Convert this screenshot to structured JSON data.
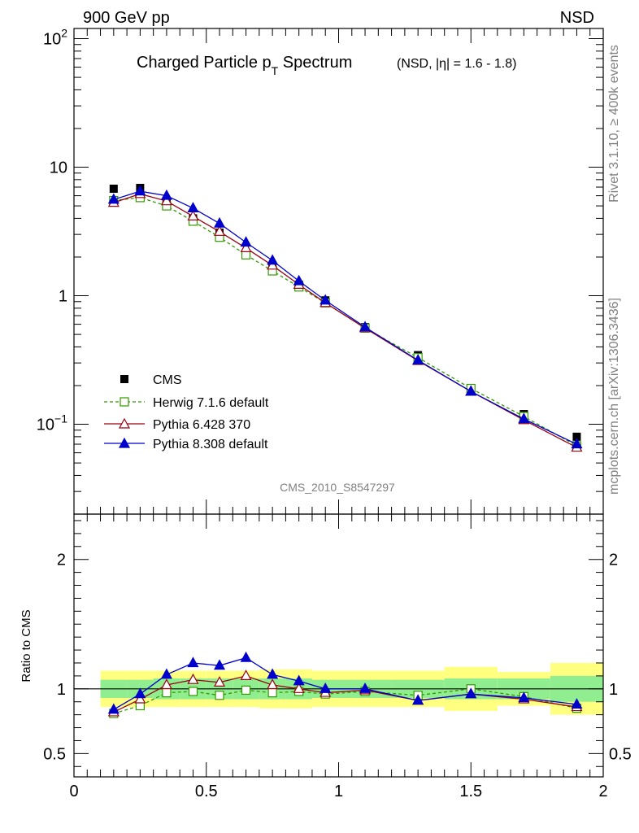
{
  "header": {
    "left": "900 GeV pp",
    "right": "NSD"
  },
  "title": {
    "main": "Charged Particle p",
    "sub": "T",
    "main2": " Spectrum",
    "suffix": "(NSD, |η| = 1.6 - 1.8)"
  },
  "side": {
    "rivet": "Rivet 3.1.10, ≥ 400k events",
    "mcplots": "mcplots.cern.ch [arXiv:1306.3436]"
  },
  "analysis_id": "CMS_2010_S8547297",
  "ratio_ylabel": "Ratio to CMS",
  "colors": {
    "herwig": "#339900",
    "pythia6": "#990011",
    "pythia8": "#0000cc",
    "band_outer": "#ffff80",
    "band_inner": "#90ee90"
  },
  "chart_data": [
    {
      "type": "scatter",
      "panel": "main",
      "yscale": "log",
      "xlim": [
        0,
        2
      ],
      "ylim": [
        0.02,
        120
      ],
      "yticks": [
        {
          "value": 0.1,
          "base": "10",
          "exp": "−1"
        },
        {
          "value": 1,
          "label": "1"
        },
        {
          "value": 10,
          "label": "10"
        },
        {
          "value": 100,
          "base": "10",
          "exp": "2"
        }
      ],
      "legend_position": "bottom-left",
      "series": [
        {
          "name": "CMS",
          "marker": "filled-square",
          "x": [
            0.15,
            0.25,
            0.35,
            0.45,
            0.55,
            0.65,
            0.75,
            0.85,
            0.95,
            1.1,
            1.3,
            1.5,
            1.7,
            1.9
          ],
          "y": [
            6.8,
            6.9,
            5.3,
            4.0,
            3.1,
            2.15,
            1.65,
            1.22,
            0.92,
            0.57,
            0.345,
            0.19,
            0.12,
            0.08
          ]
        },
        {
          "name": "Herwig 7.1.6 default",
          "marker": "open-square",
          "line": "dashed",
          "x": [
            0.15,
            0.25,
            0.35,
            0.45,
            0.55,
            0.65,
            0.75,
            0.85,
            0.95,
            1.1,
            1.3,
            1.5,
            1.7,
            1.9
          ],
          "y": [
            5.5,
            5.8,
            5.0,
            3.8,
            2.85,
            2.08,
            1.56,
            1.17,
            0.88,
            0.56,
            0.33,
            0.19,
            0.115,
            0.068
          ]
        },
        {
          "name": "Pythia 6.428 370",
          "marker": "open-triangle",
          "line": "solid",
          "x": [
            0.15,
            0.25,
            0.35,
            0.45,
            0.55,
            0.65,
            0.75,
            0.85,
            0.95,
            1.1,
            1.3,
            1.5,
            1.7,
            1.9
          ],
          "y": [
            5.3,
            6.2,
            5.45,
            4.15,
            3.15,
            2.35,
            1.72,
            1.22,
            0.88,
            0.56,
            0.312,
            0.18,
            0.108,
            0.066
          ]
        },
        {
          "name": "Pythia 8.308 default",
          "marker": "filled-triangle",
          "line": "solid",
          "x": [
            0.15,
            0.25,
            0.35,
            0.45,
            0.55,
            0.65,
            0.75,
            0.85,
            0.95,
            1.1,
            1.3,
            1.5,
            1.7,
            1.9
          ],
          "y": [
            5.6,
            6.5,
            6.0,
            4.8,
            3.65,
            2.6,
            1.88,
            1.3,
            0.92,
            0.57,
            0.315,
            0.18,
            0.11,
            0.07
          ]
        }
      ]
    },
    {
      "type": "line",
      "panel": "ratio",
      "xlim": [
        0,
        2
      ],
      "ylim": [
        0.32,
        2.35
      ],
      "yticks": [
        0.5,
        1,
        2
      ],
      "xticks": [
        0,
        0.5,
        1,
        1.5,
        2
      ],
      "reference": 1,
      "bands": {
        "edges": [
          0.1,
          0.2,
          0.3,
          0.4,
          0.5,
          0.6,
          0.7,
          0.8,
          0.9,
          1.0,
          1.2,
          1.4,
          1.6,
          1.8,
          2.0
        ],
        "inner": [
          [
            0.93,
            1.07
          ],
          [
            0.93,
            1.07
          ],
          [
            0.92,
            1.08
          ],
          [
            0.92,
            1.08
          ],
          [
            0.92,
            1.08
          ],
          [
            0.92,
            1.08
          ],
          [
            0.92,
            1.08
          ],
          [
            0.92,
            1.08
          ],
          [
            0.93,
            1.07
          ],
          [
            0.93,
            1.07
          ],
          [
            0.93,
            1.07
          ],
          [
            0.92,
            1.08
          ],
          [
            0.92,
            1.08
          ],
          [
            0.9,
            1.1
          ]
        ],
        "outer": [
          [
            0.86,
            1.14
          ],
          [
            0.86,
            1.14
          ],
          [
            0.86,
            1.14
          ],
          [
            0.86,
            1.14
          ],
          [
            0.86,
            1.14
          ],
          [
            0.86,
            1.14
          ],
          [
            0.85,
            1.15
          ],
          [
            0.85,
            1.15
          ],
          [
            0.86,
            1.14
          ],
          [
            0.86,
            1.14
          ],
          [
            0.86,
            1.14
          ],
          [
            0.83,
            1.17
          ],
          [
            0.87,
            1.13
          ],
          [
            0.8,
            1.2
          ]
        ]
      },
      "series": [
        {
          "name": "Herwig 7.1.6 default",
          "marker": "open-square",
          "line": "dashed",
          "x": [
            0.15,
            0.25,
            0.35,
            0.45,
            0.55,
            0.65,
            0.75,
            0.85,
            0.95,
            1.1,
            1.3,
            1.5,
            1.7,
            1.9
          ],
          "y": [
            0.81,
            0.87,
            0.97,
            0.98,
            0.95,
            0.99,
            0.97,
            0.98,
            0.96,
            0.98,
            0.95,
            1.0,
            0.94,
            0.85
          ]
        },
        {
          "name": "Pythia 6.428 370",
          "marker": "open-triangle",
          "line": "solid",
          "x": [
            0.15,
            0.25,
            0.35,
            0.45,
            0.55,
            0.65,
            0.75,
            0.85,
            0.95,
            1.1,
            1.3,
            1.5,
            1.7,
            1.9
          ],
          "y": [
            0.82,
            0.92,
            1.03,
            1.07,
            1.05,
            1.1,
            1.03,
            1.0,
            0.97,
            0.99,
            0.91,
            0.96,
            0.92,
            0.86
          ]
        },
        {
          "name": "Pythia 8.308 default",
          "marker": "filled-triangle",
          "line": "solid",
          "x": [
            0.15,
            0.25,
            0.35,
            0.45,
            0.55,
            0.65,
            0.75,
            0.85,
            0.95,
            1.1,
            1.3,
            1.5,
            1.7,
            1.9
          ],
          "y": [
            0.84,
            0.96,
            1.11,
            1.2,
            1.18,
            1.24,
            1.11,
            1.06,
            1.0,
            1.0,
            0.91,
            0.96,
            0.93,
            0.88
          ]
        }
      ]
    }
  ]
}
